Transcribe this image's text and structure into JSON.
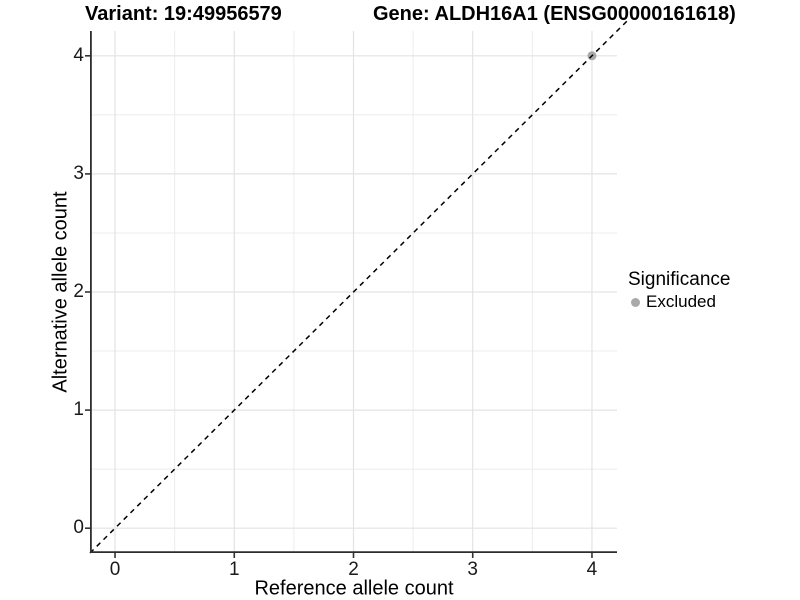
{
  "header": {
    "variant_title": "Variant: 19:49956579",
    "gene_title": "Gene: ALDH16A1 (ENSG00000161618)"
  },
  "axes": {
    "x_label": "Reference allele count",
    "y_label": "Alternative allele count"
  },
  "legend": {
    "title": "Significance",
    "items": [
      {
        "label": "Excluded",
        "marker": "circle-icon",
        "color": "#a9a9a9"
      }
    ]
  },
  "chart_data": {
    "type": "scatter",
    "title": "",
    "xlabel": "Reference allele count",
    "ylabel": "Alternative allele count",
    "xlim": [
      -0.21,
      4.21
    ],
    "ylim": [
      -0.21,
      4.21
    ],
    "x_ticks": [
      0,
      1,
      2,
      3,
      4
    ],
    "y_ticks": [
      0,
      1,
      2,
      3,
      4
    ],
    "minor_gridlines": [
      0.5,
      1.5,
      2.5,
      3.5
    ],
    "grid": "major and minor, light gray on white",
    "legend_position": "right-center",
    "series": [
      {
        "name": "Excluded",
        "color": "#a9a9a9",
        "points": [
          [
            4,
            4
          ]
        ]
      }
    ],
    "reference_line": {
      "type": "identity y=x",
      "style": "dashed",
      "color": "#000000",
      "extent": [
        -0.21,
        4.31
      ]
    }
  },
  "colors": {
    "background": "#ffffff",
    "grid_major": "#e3e3e3",
    "grid_minor": "#ececec",
    "axis_line": "#2d2d2d",
    "tick_mark": "#333333",
    "tick_label": "#1a1a1a",
    "reference_line": "#000000",
    "point": "#a9a9a9"
  }
}
